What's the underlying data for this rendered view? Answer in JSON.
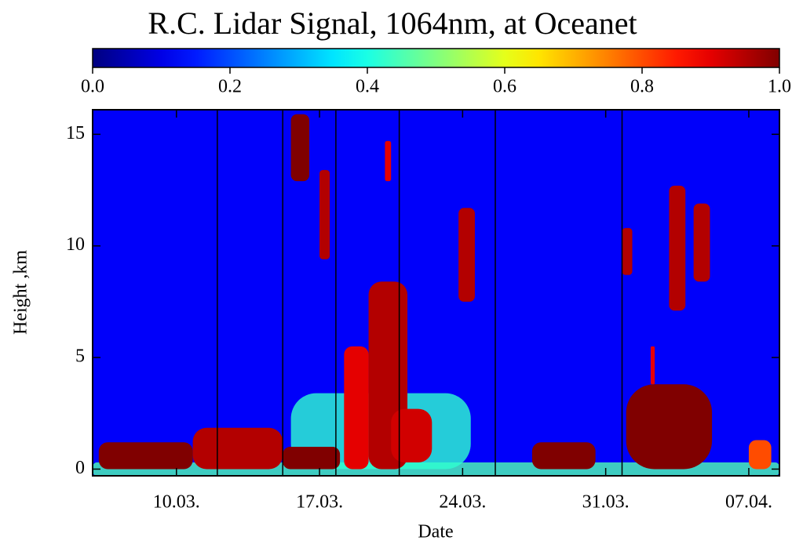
{
  "chart_data": {
    "type": "heatmap",
    "title": "R.C. Lidar Signal, 1064nm, at Oceanet",
    "x_label": "Date",
    "y_label": "Height ,km",
    "colormap": "jet",
    "clim": [
      0,
      1
    ],
    "cticks": [
      {
        "value": 0,
        "label": "0.0"
      },
      0.2,
      0.4,
      0.6,
      0.8,
      {
        "value": 1,
        "label": "1.0"
      }
    ],
    "xlim": [
      64.9,
      98.5
    ],
    "xticks": [
      {
        "value": 69,
        "label": "10.03."
      },
      {
        "value": 76,
        "label": "17.03."
      },
      {
        "value": 83,
        "label": "24.03."
      },
      {
        "value": 90,
        "label": "31.03."
      },
      {
        "value": 97,
        "label": "07.04."
      }
    ],
    "ylim": [
      -0.3,
      16.1
    ],
    "yticks": [
      0,
      5,
      10,
      15
    ],
    "background": 0.12,
    "breaks": [
      71.0,
      74.2,
      76.8,
      79.9,
      84.6,
      90.8
    ],
    "features": [
      {
        "x0": 64.9,
        "x1": 98.5,
        "y0": -0.3,
        "y1": 0.3,
        "value": 0.45
      },
      {
        "x0": 74.6,
        "x1": 83.4,
        "y0": 0,
        "y1": 3.4,
        "value": 0.42
      },
      {
        "x0": 65.2,
        "x1": 69.8,
        "y0": 0,
        "y1": 1.2,
        "value": 1.0
      },
      {
        "x0": 69.8,
        "x1": 74.2,
        "y0": 0,
        "y1": 1.85,
        "value": 0.95
      },
      {
        "x0": 74.2,
        "x1": 77.0,
        "y0": 0,
        "y1": 1.0,
        "value": 1.0
      },
      {
        "x0": 74.6,
        "x1": 75.5,
        "y0": 12.9,
        "y1": 15.9,
        "value": 1.0
      },
      {
        "x0": 76.0,
        "x1": 76.5,
        "y0": 9.4,
        "y1": 13.4,
        "value": 0.95
      },
      {
        "x0": 78.4,
        "x1": 80.3,
        "y0": 0,
        "y1": 8.4,
        "value": 0.95
      },
      {
        "x0": 77.2,
        "x1": 78.4,
        "y0": 0,
        "y1": 5.5,
        "value": 0.9
      },
      {
        "x0": 79.5,
        "x1": 81.5,
        "y0": 0.3,
        "y1": 2.7,
        "value": 0.92
      },
      {
        "x0": 79.2,
        "x1": 79.5,
        "y0": 12.9,
        "y1": 14.7,
        "value": 0.9
      },
      {
        "x0": 82.8,
        "x1": 83.6,
        "y0": 7.5,
        "y1": 11.7,
        "value": 0.95
      },
      {
        "x0": 86.4,
        "x1": 89.5,
        "y0": 0,
        "y1": 1.2,
        "value": 1.0
      },
      {
        "x0": 91.0,
        "x1": 95.2,
        "y0": 0,
        "y1": 3.8,
        "value": 1.0
      },
      {
        "x0": 92.2,
        "x1": 92.4,
        "y0": 3.8,
        "y1": 5.5,
        "value": 0.9
      },
      {
        "x0": 90.8,
        "x1": 91.3,
        "y0": 8.7,
        "y1": 10.8,
        "value": 0.95
      },
      {
        "x0": 93.1,
        "x1": 93.9,
        "y0": 7.1,
        "y1": 12.7,
        "value": 0.95
      },
      {
        "x0": 94.3,
        "x1": 95.1,
        "y0": 8.4,
        "y1": 11.9,
        "value": 0.95
      },
      {
        "x0": 97.0,
        "x1": 98.1,
        "y0": 0,
        "y1": 1.3,
        "value": 0.8
      }
    ]
  }
}
